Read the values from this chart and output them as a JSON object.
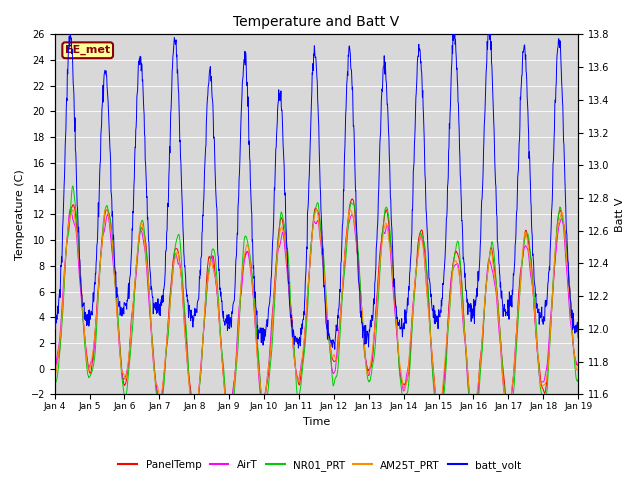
{
  "title": "Temperature and Batt V",
  "xlabel": "Time",
  "ylabel_left": "Temperature (C)",
  "ylabel_right": "Batt V",
  "ylim_left": [
    -2,
    26
  ],
  "ylim_right": [
    11.6,
    13.8
  ],
  "yticks_left": [
    -2,
    0,
    2,
    4,
    6,
    8,
    10,
    12,
    14,
    16,
    18,
    20,
    22,
    24,
    26
  ],
  "yticks_right": [
    11.6,
    11.8,
    12.0,
    12.2,
    12.4,
    12.6,
    12.8,
    13.0,
    13.2,
    13.4,
    13.6,
    13.8
  ],
  "xtick_labels": [
    "Jan 4",
    "Jan 5",
    "Jan 6",
    "Jan 7",
    "Jan 8",
    "Jan 9",
    "Jan 10",
    "Jan 11",
    "Jan 12",
    "Jan 13",
    "Jan 14",
    "Jan 15",
    "Jan 16",
    "Jan 17",
    "Jan 18",
    "Jan 19"
  ],
  "annotation_text": "EE_met",
  "annotation_color": "#8B0000",
  "annotation_bg": "#FFFF99",
  "bg_color": "#D8D8D8",
  "colors": {
    "PanelTemp": "#FF0000",
    "AirT": "#FF00FF",
    "NR01_PRT": "#00CC00",
    "AM25T_PRT": "#FF8C00",
    "batt_volt": "#0000FF"
  },
  "legend_labels": [
    "PanelTemp",
    "AirT",
    "NR01_PRT",
    "AM25T_PRT",
    "batt_volt"
  ],
  "n_points": 1440,
  "seed": 42
}
